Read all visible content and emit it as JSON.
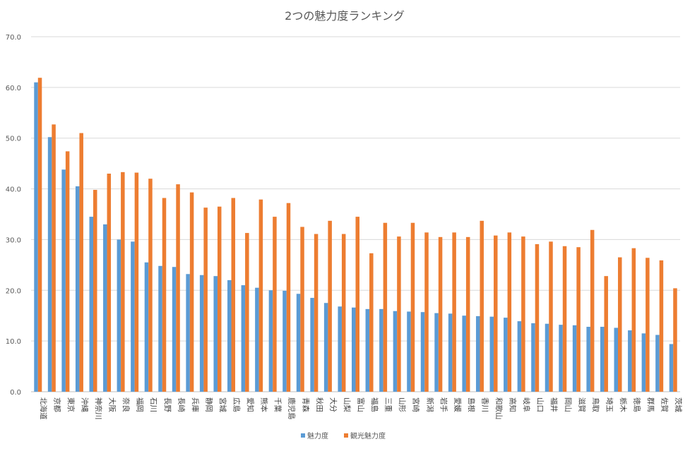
{
  "chart_data": {
    "type": "bar",
    "title": "2つの魅力度ランキング",
    "xlabel": "",
    "ylabel": "",
    "ylim": [
      0,
      70
    ],
    "yticks": [
      "0.0",
      "10.0",
      "20.0",
      "30.0",
      "40.0",
      "50.0",
      "60.0",
      "70.0"
    ],
    "grid": true,
    "legend_position": "bottom",
    "categories": [
      "北海道",
      "京都",
      "東京",
      "沖縄",
      "神奈川",
      "大阪",
      "奈良",
      "福岡",
      "石川",
      "長野",
      "長崎",
      "兵庫",
      "静岡",
      "宮城",
      "広島",
      "愛知",
      "熊本",
      "千葉",
      "鹿児島",
      "青森",
      "秋田",
      "大分",
      "山梨",
      "富山",
      "福島",
      "三重",
      "山形",
      "宮崎",
      "新潟",
      "岩手",
      "愛媛",
      "島根",
      "香川",
      "和歌山",
      "高知",
      "岐阜",
      "山口",
      "福井",
      "岡山",
      "滋賀",
      "鳥取",
      "埼玉",
      "栃木",
      "徳島",
      "群馬",
      "佐賀",
      "茨城"
    ],
    "series": [
      {
        "name": "魅力度",
        "color": "#5b9bd5",
        "values": [
          61.0,
          50.2,
          43.8,
          40.5,
          34.5,
          33.0,
          30.0,
          29.6,
          25.5,
          24.8,
          24.6,
          23.2,
          23.0,
          22.8,
          22.0,
          21.0,
          20.5,
          20.0,
          19.9,
          19.3,
          18.5,
          17.5,
          16.8,
          16.6,
          16.3,
          16.3,
          15.9,
          15.8,
          15.7,
          15.5,
          15.4,
          15.0,
          14.9,
          14.8,
          14.6,
          13.9,
          13.5,
          13.4,
          13.2,
          13.1,
          12.8,
          12.8,
          12.6,
          12.1,
          11.5,
          11.2,
          9.4
        ]
      },
      {
        "name": "観光魅力度",
        "color": "#ed7d31",
        "values": [
          61.9,
          52.7,
          47.4,
          51.0,
          39.8,
          43.0,
          43.3,
          43.2,
          42.0,
          38.2,
          40.9,
          39.3,
          36.3,
          36.5,
          38.2,
          31.3,
          37.9,
          34.5,
          37.2,
          32.5,
          31.1,
          33.7,
          31.1,
          34.5,
          27.3,
          33.3,
          30.6,
          33.3,
          31.4,
          30.5,
          31.4,
          30.5,
          33.7,
          30.8,
          31.4,
          30.6,
          29.1,
          29.6,
          28.7,
          28.5,
          31.9,
          22.8,
          26.5,
          28.3,
          26.4,
          25.9,
          20.4
        ]
      }
    ]
  }
}
